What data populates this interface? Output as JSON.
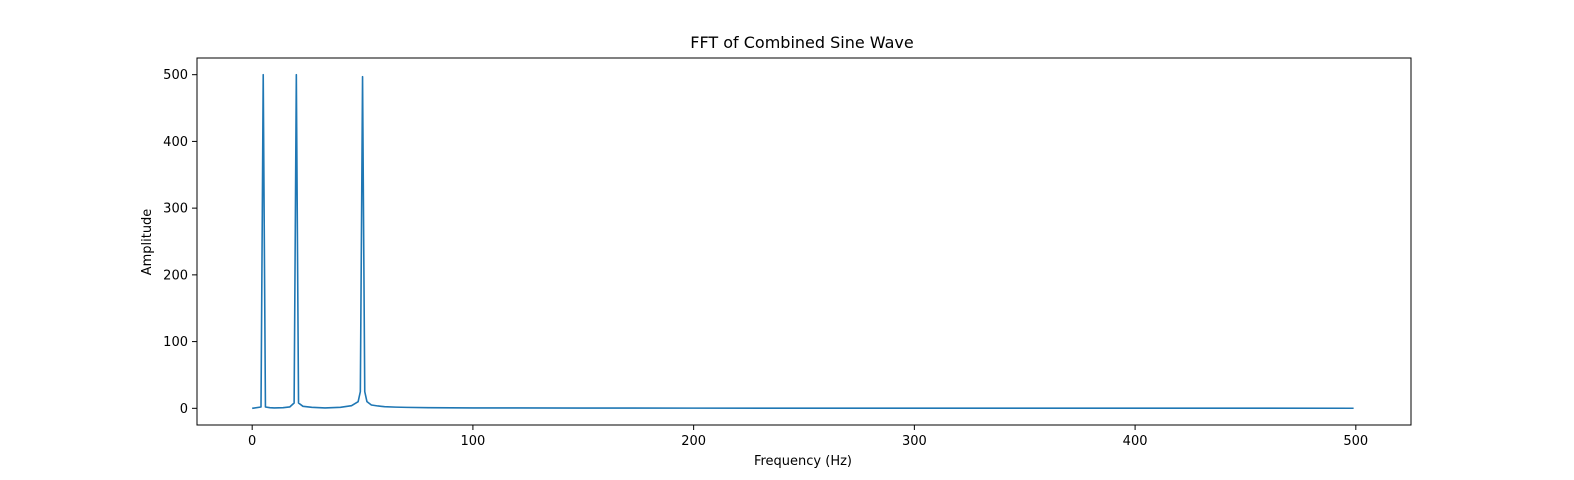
{
  "chart_data": {
    "type": "line",
    "title": "FFT of Combined Sine Wave",
    "xlabel": "Frequency (Hz)",
    "ylabel": "Amplitude",
    "xlim": [
      -25,
      525
    ],
    "ylim": [
      -25,
      525
    ],
    "xticks": [
      0,
      100,
      200,
      300,
      400,
      500
    ],
    "yticks": [
      0,
      100,
      200,
      300,
      400,
      500
    ],
    "grid": false,
    "color": "#1f77b4",
    "series": [
      {
        "x": [
          0,
          4,
          5,
          6,
          8,
          10,
          14,
          17,
          19,
          20,
          21,
          23,
          27,
          33,
          40,
          45,
          48,
          49,
          50,
          51,
          52,
          54,
          57,
          60,
          65,
          70,
          80,
          90,
          100,
          120,
          150,
          200,
          250,
          300,
          350,
          400,
          450,
          499
        ],
        "y": [
          0,
          2,
          500,
          2,
          1,
          0.5,
          1,
          2,
          8,
          500,
          8,
          3,
          1.5,
          0.5,
          1.5,
          4,
          10,
          25,
          497,
          25,
          10,
          5,
          3.5,
          2.5,
          1.8,
          1.4,
          1,
          0.8,
          0.6,
          0.5,
          0.4,
          0.3,
          0.25,
          0.2,
          0.2,
          0.15,
          0.15,
          0.1
        ]
      }
    ]
  }
}
